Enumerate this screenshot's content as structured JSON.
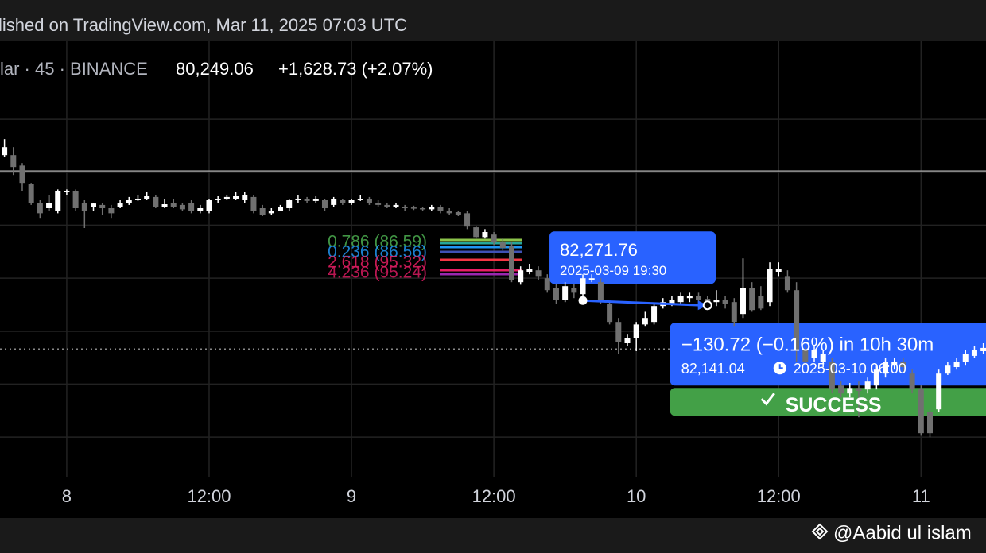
{
  "chart_data": {
    "type": "candlestick",
    "header": "lished on TradingView.com, Mar 11, 2025 07:03 UTC",
    "symbol": "lar · 45 · BINANCE",
    "last_price": "80,249.06",
    "change": "+1,628.73 (+2.07%)",
    "author": "@Aabid ul islam",
    "up_color": "#ffffff",
    "down_color": "#707070",
    "x": [
      -7,
      -6,
      -5,
      -4,
      -3,
      -2,
      -1,
      0,
      1,
      2,
      3,
      4,
      5,
      6,
      7,
      8,
      9,
      10,
      11,
      12,
      13,
      14,
      15,
      16,
      17,
      18,
      19,
      20,
      21,
      22,
      23,
      24,
      25,
      26,
      27,
      28,
      29,
      30,
      31,
      32,
      33,
      34,
      35,
      36,
      37,
      38,
      39,
      40,
      41,
      42,
      43,
      44,
      45,
      46,
      47,
      48,
      49,
      50,
      51,
      52,
      53,
      54,
      55,
      56,
      57,
      58,
      59,
      60,
      61,
      62,
      63,
      64,
      65,
      66,
      67,
      68,
      69,
      70,
      71,
      72,
      73,
      74,
      75,
      76,
      77,
      78,
      79,
      80,
      81,
      82,
      83,
      84,
      85,
      86,
      87,
      88,
      89,
      90,
      91,
      92,
      93,
      94,
      95,
      96,
      97,
      98,
      99,
      100,
      101,
      102,
      103
    ],
    "open": [
      86300,
      86300,
      86010,
      85490,
      84980,
      84830,
      84760,
      85270,
      85310,
      84980,
      84870,
      84920,
      84830,
      84870,
      84980,
      85050,
      85090,
      85140,
      84870,
      84980,
      84920,
      84980,
      84760,
      84760,
      85050,
      85090,
      85090,
      85050,
      85140,
      84830,
      84690,
      84760,
      84830,
      85050,
      85090,
      85030,
      85050,
      84920,
      85050,
      84980,
      85050,
      85090,
      84980,
      84920,
      84870,
      84870,
      84850,
      84830,
      84800,
      84870,
      84760,
      84720,
      84690,
      84300,
      84030,
      84100,
      83880,
      83770,
      82780,
      83070,
      83110,
      82890,
      82630,
      82280,
      82630,
      82450,
      82850,
      82780,
      82190,
      81680,
      81090,
      81240,
      81610,
      81680,
      82120,
      82190,
      82230,
      82340,
      82410,
      82320,
      82230,
      82280,
      82230,
      81900,
      82630,
      82410,
      82230,
      83070,
      82930,
      82560,
      80910,
      80690,
      80580,
      80580,
      79920,
      79700,
      79850,
      79810,
      79920,
      80250,
      80470,
      80580,
      80250,
      79810,
      79190,
      79260,
      80250,
      80430,
      80580,
      80740,
      80870
    ],
    "high": [
      86740,
      86520,
      86080,
      85530,
      85050,
      85200,
      85350,
      85350,
      85350,
      85050,
      84980,
      84980,
      84920,
      85050,
      85140,
      85200,
      85270,
      85200,
      85090,
      85090,
      84980,
      85050,
      84920,
      85090,
      85160,
      85200,
      85270,
      85270,
      85200,
      84920,
      84830,
      84920,
      85090,
      85200,
      85140,
      85160,
      85090,
      85140,
      85090,
      85090,
      85200,
      85140,
      85050,
      84980,
      84980,
      84920,
      84900,
      84870,
      84920,
      84920,
      84830,
      84760,
      84760,
      84340,
      84250,
      84170,
      83990,
      83880,
      83220,
      83290,
      83220,
      83000,
      82720,
      82780,
      82720,
      83000,
      83000,
      82890,
      82230,
      81790,
      81350,
      81680,
      81960,
      82190,
      82340,
      82410,
      82490,
      82490,
      82490,
      82410,
      82560,
      82410,
      82340,
      83440,
      82780,
      82670,
      83330,
      83330,
      83110,
      82780,
      81020,
      81020,
      80910,
      80690,
      80030,
      79990,
      80030,
      80140,
      80470,
      80690,
      80690,
      80690,
      80360,
      79920,
      79260,
      80360,
      80580,
      80690,
      80910,
      81020,
      81090
    ],
    "low": [
      86260,
      85750,
      85310,
      84920,
      84540,
      84760,
      84690,
      85200,
      84760,
      84280,
      84760,
      84650,
      84540,
      84830,
      84920,
      85030,
      85050,
      84830,
      84830,
      84830,
      84760,
      84690,
      84690,
      84690,
      84980,
      85050,
      85050,
      84980,
      84690,
      84610,
      84650,
      84760,
      84760,
      84980,
      84980,
      84980,
      84760,
      84870,
      84920,
      84920,
      85030,
      84920,
      84870,
      84830,
      84830,
      84760,
      84780,
      84760,
      84760,
      84690,
      84650,
      84610,
      84250,
      83990,
      83990,
      83810,
      83660,
      82780,
      82710,
      83000,
      82850,
      82490,
      82190,
      82230,
      82340,
      82340,
      82780,
      82190,
      81610,
      80800,
      81020,
      80870,
      81570,
      81610,
      82050,
      82120,
      82190,
      82230,
      82190,
      82120,
      82120,
      82050,
      81570,
      81790,
      81960,
      82010,
      82120,
      82930,
      82490,
      80580,
      80470,
      80580,
      80430,
      79700,
      79590,
      79590,
      79040,
      79700,
      79810,
      80140,
      80360,
      80290,
      79700,
      78530,
      78490,
      79190,
      80210,
      80360,
      80470,
      80690,
      80800
    ],
    "close": [
      86520,
      85970,
      85530,
      84980,
      84690,
      84980,
      85310,
      85310,
      84830,
      84760,
      84960,
      84830,
      84690,
      84980,
      85050,
      85090,
      85160,
      84870,
      84940,
      84870,
      84800,
      84760,
      84830,
      85050,
      85090,
      85140,
      85160,
      85200,
      84760,
      84650,
      84760,
      84870,
      85050,
      85090,
      85030,
      85090,
      84830,
      85090,
      84980,
      85050,
      85090,
      84980,
      84920,
      84870,
      84920,
      84830,
      84830,
      84800,
      84870,
      84760,
      84690,
      84650,
      84320,
      84030,
      84170,
      83880,
      83730,
      82850,
      83110,
      83150,
      82930,
      82560,
      82280,
      82670,
      82490,
      82890,
      82890,
      82230,
      81680,
      81130,
      81240,
      81610,
      81790,
      82120,
      82230,
      82280,
      82410,
      82410,
      82280,
      82230,
      82280,
      82190,
      81680,
      82630,
      82010,
      82050,
      83150,
      83150,
      82560,
      80910,
      80580,
      80910,
      80800,
      79810,
      79700,
      79850,
      79770,
      80030,
      80360,
      80580,
      80580,
      80430,
      79810,
      78600,
      78600,
      80250,
      80470,
      80580,
      80800,
      80910,
      80960
    ],
    "xlim": [
      -7.5,
      103.3
    ],
    "ylim": [
      76250,
      89450
    ],
    "xticks": [
      {
        "value": 0,
        "label": "8"
      },
      {
        "value": 16,
        "label": "12:00"
      },
      {
        "value": 32,
        "label": "9"
      },
      {
        "value": 48,
        "label": "12:00"
      },
      {
        "value": 64,
        "label": "10"
      },
      {
        "value": 80,
        "label": "12:00"
      },
      {
        "value": 96,
        "label": "11"
      }
    ],
    "ygrid": [
      87290,
      85820,
      84360,
      82890,
      81420,
      79960,
      78490
    ],
    "grid": true,
    "hlines": [
      {
        "value": 85860,
        "style": "solid"
      },
      {
        "value": 80930,
        "style": "dotted"
      }
    ],
    "fib_labels": [
      {
        "text": "0.786 (86.59)",
        "color": "#4caf50"
      },
      {
        "text": "0.236 (86.56)",
        "color": "#2196f3"
      },
      {
        "text": "2.618 (95.32)",
        "color": "#e91e63"
      },
      {
        "text": "4.236 (95.24)",
        "color": "#d81b60"
      }
    ],
    "prediction": {
      "x": [
        58,
        72
      ],
      "values": [
        82271.76,
        82141.04
      ],
      "value_labels": [
        "82,271.76",
        "82,141.04"
      ],
      "times": [
        "2025-03-09 19:30",
        "2025-03-10 06:00"
      ],
      "change": "−130.72 (−0.16%) in 10h 30m",
      "status": "SUCCESS",
      "color": "#2962ff",
      "status_color": "#43a047"
    }
  }
}
